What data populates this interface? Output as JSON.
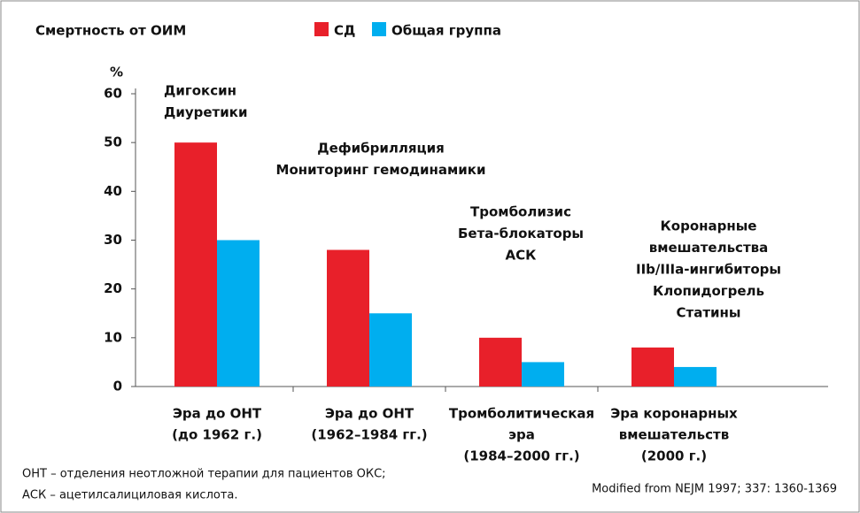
{
  "chart_data": {
    "type": "bar",
    "title": "Смертность от ОИМ",
    "y_label": "%",
    "categories": [
      [
        "Эра до ОНТ",
        "(до 1962 г.)"
      ],
      [
        "Эра до ОНТ",
        "(1962–1984 гг.)"
      ],
      [
        "Тромболитическая",
        "эра",
        "(1984–2000 гг.)"
      ],
      [
        "Эра коронарных",
        "вмешательств",
        "(2000 г.)"
      ]
    ],
    "series": [
      {
        "name": "СД",
        "color": "#e8202a",
        "values": [
          50,
          28,
          10,
          8
        ]
      },
      {
        "name": "Общая группа",
        "color": "#00aeef",
        "values": [
          30,
          15,
          5,
          4
        ]
      }
    ],
    "annotations": [
      [
        "Дигоксин",
        "Диуретики"
      ],
      [
        "Дефибрилляция",
        "Мониторинг гемодинамики"
      ],
      [
        "Тромболизис",
        "Бета-блокаторы",
        "АСК"
      ],
      [
        "Коронарные",
        "вмешательства",
        "IIb/IIIa-ингибиторы",
        "Клопидогрель",
        "Статины"
      ]
    ],
    "ylim": [
      0,
      60
    ],
    "yticks": [
      0,
      10,
      20,
      30,
      40,
      50,
      60
    ],
    "grid": false,
    "footnotes": [
      "ОНТ – отделения неотложной терапии для пациентов ОКС;",
      "АСК – ацетилсалициловая кислота."
    ],
    "source": "Modified from NEJM 1997; 337: 1360-1369"
  }
}
